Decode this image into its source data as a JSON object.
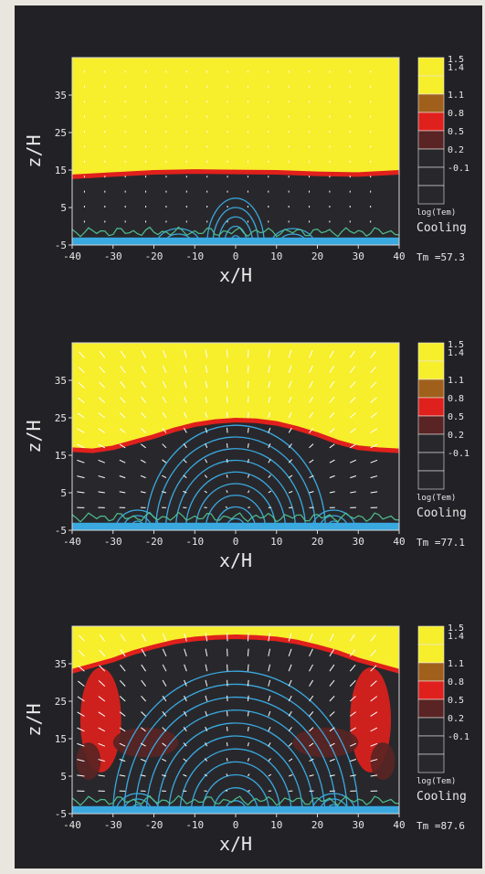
{
  "colors": {
    "background": "#222226",
    "hot_gas": "#f7ee2c",
    "cool_gas": "#28282c",
    "interface": "#e0201c",
    "contours": "#3aa9e0",
    "arrows": "#ffffff"
  },
  "chart_data": [
    {
      "type": "heatmap",
      "panel": "top",
      "xlabel": "x/H",
      "ylabel": "z/H",
      "xlim": [
        -40,
        40
      ],
      "ylim": [
        -5,
        45
      ],
      "x_ticks": [
        "-40",
        "-30",
        "-20",
        "-10",
        "0",
        "10",
        "20",
        "30",
        "40"
      ],
      "y_ticks": [
        "35",
        "25",
        "15",
        "5",
        "-5"
      ],
      "colorbar": {
        "labels": [
          "1.5",
          "1.4",
          "1.1",
          "0.8",
          "0.5",
          "0.2",
          "-0.1"
        ],
        "colors": [
          "#f7ee2c",
          "#f7ee2c",
          "#a0601c",
          "#e0201c",
          "#5a2424",
          "#28282c",
          "#28282c",
          "#28282c"
        ],
        "quantity": "log(Tem)",
        "title": "Cooling"
      },
      "time_label": "Tm =57.3",
      "interface_height": 14,
      "interface_profile": [
        [
          -40,
          13.2
        ],
        [
          -30,
          13.8
        ],
        [
          -20,
          14.4
        ],
        [
          -10,
          14.6
        ],
        [
          0,
          14.5
        ],
        [
          10,
          14.4
        ],
        [
          20,
          14.0
        ],
        [
          30,
          13.8
        ],
        [
          40,
          14.4
        ]
      ],
      "contour_levels": 5,
      "contour_height": 7.5
    },
    {
      "type": "heatmap",
      "panel": "middle",
      "xlabel": "x/H",
      "ylabel": "z/H",
      "xlim": [
        -40,
        40
      ],
      "ylim": [
        -5,
        45
      ],
      "x_ticks": [
        "-40",
        "-30",
        "-20",
        "-10",
        "0",
        "10",
        "20",
        "30",
        "40"
      ],
      "y_ticks": [
        "35",
        "25",
        "15",
        "5",
        "-5"
      ],
      "colorbar": {
        "labels": [
          "1.5",
          "1.4",
          "1.1",
          "0.8",
          "0.5",
          "0.2",
          "-0.1"
        ],
        "colors": [
          "#f7ee2c",
          "#f7ee2c",
          "#a0601c",
          "#e0201c",
          "#5a2424",
          "#28282c",
          "#28282c",
          "#28282c"
        ],
        "quantity": "log(Tem)",
        "title": "Cooling"
      },
      "time_label": "Tm =77.1",
      "interface_profile": [
        [
          -40,
          16.5
        ],
        [
          -35,
          16.2
        ],
        [
          -30,
          17.0
        ],
        [
          -25,
          18.5
        ],
        [
          -20,
          20.0
        ],
        [
          -15,
          21.8
        ],
        [
          -10,
          23.2
        ],
        [
          -5,
          24.0
        ],
        [
          0,
          24.4
        ],
        [
          5,
          24.2
        ],
        [
          10,
          23.5
        ],
        [
          15,
          22.2
        ],
        [
          20,
          20.5
        ],
        [
          25,
          18.5
        ],
        [
          30,
          17.0
        ],
        [
          35,
          16.5
        ],
        [
          40,
          16.2
        ]
      ],
      "contour_levels": 9,
      "contour_height": 23
    },
    {
      "type": "heatmap",
      "panel": "bottom",
      "xlabel": "x/H",
      "ylabel": "z/H",
      "xlim": [
        -40,
        40
      ],
      "ylim": [
        -5,
        45
      ],
      "x_ticks": [
        "-40",
        "-30",
        "-20",
        "-10",
        "0",
        "10",
        "20",
        "30",
        "40"
      ],
      "y_ticks": [
        "35",
        "25",
        "15",
        "5",
        "-5"
      ],
      "colorbar": {
        "labels": [
          "1.5",
          "1.4",
          "1.1",
          "0.8",
          "0.5",
          "0.2",
          "-0.1"
        ],
        "colors": [
          "#f7ee2c",
          "#f7ee2c",
          "#a0601c",
          "#e0201c",
          "#5a2424",
          "#28282c",
          "#28282c",
          "#28282c"
        ],
        "quantity": "log(Tem)",
        "title": "Cooling"
      },
      "time_label": "Tm =87.6",
      "interface_profile": [
        [
          -40,
          33.0
        ],
        [
          -35,
          34.5
        ],
        [
          -30,
          36.0
        ],
        [
          -25,
          38.0
        ],
        [
          -20,
          39.5
        ],
        [
          -15,
          40.8
        ],
        [
          -10,
          41.6
        ],
        [
          -5,
          42.0
        ],
        [
          0,
          42.2
        ],
        [
          5,
          42.0
        ],
        [
          10,
          41.6
        ],
        [
          15,
          40.8
        ],
        [
          20,
          39.5
        ],
        [
          25,
          38.0
        ],
        [
          30,
          36.0
        ],
        [
          35,
          34.5
        ],
        [
          40,
          33.0
        ]
      ],
      "contour_levels": 11,
      "contour_height": 33
    }
  ]
}
